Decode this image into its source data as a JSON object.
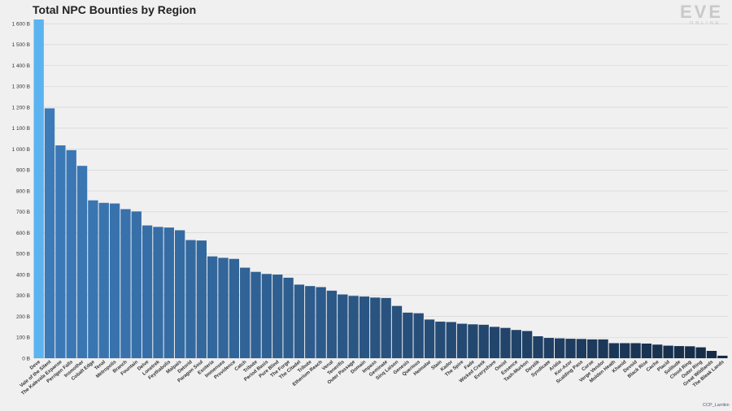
{
  "logo": {
    "main": "EVE",
    "sub": "ONLINE"
  },
  "credit": "CCP_Larrikin",
  "colors": {
    "first_bar": "#5bb3f0",
    "bar_start": "#3c7ab8",
    "bar_end": "#152a45",
    "background": "#f0f0f0"
  },
  "chart_data": {
    "type": "bar",
    "title": "Total NPC Bounties by Region",
    "xlabel": "",
    "ylabel": "",
    "ylim": [
      0,
      1620
    ],
    "yticks": [
      0,
      100,
      200,
      300,
      400,
      500,
      600,
      700,
      800,
      900,
      1000,
      1100,
      1200,
      1300,
      1400,
      1500,
      1600
    ],
    "ytick_labels": [
      "0 B",
      "100 B",
      "200 B",
      "300 B",
      "400 B",
      "500 B",
      "600 B",
      "700 B",
      "800 B",
      "900 B",
      "1 000 B",
      "1 100 B",
      "1 200 B",
      "1 300 B",
      "1 400 B",
      "1 500 B",
      "1 600 B"
    ],
    "grid": true,
    "categories": [
      "Deve",
      "Vale of the Silent",
      "The Kalevala Expanse",
      "Perrigen Falls",
      "Insmother",
      "Cobalt Edge",
      "Tenal",
      "Metropolis",
      "Branch",
      "Fountain",
      "Delve",
      "Lonetrek",
      "Feythabolis",
      "Malpais",
      "Detorid",
      "Paragon Soul",
      "Esoteria",
      "Immensea",
      "Providence",
      "Catch",
      "Tribute",
      "Period Basis",
      "Pure Blind",
      "The Forge",
      "The Citadel",
      "Tribute",
      "Etherium Reach",
      "Venal",
      "Tenerifis",
      "Outer Passage",
      "Domain",
      "Impass",
      "Geminate",
      "Sinq Laison",
      "Genesis",
      "Querious",
      "Heimatar",
      "Stain",
      "Kador",
      "The Spire",
      "Fade",
      "Wicked Creek",
      "Everyshore",
      "Omist",
      "Essence",
      "Tash-Murkon",
      "Derelik",
      "Syndicate",
      "Aridia",
      "Kor-Azor",
      "Scalding Pass",
      "Curse",
      "Verge Vendor",
      "Molden Heath",
      "Khanid",
      "Devoid",
      "Black Rise",
      "Cache",
      "Placid",
      "Solitude",
      "Cloud Ring",
      "Outer Ring",
      "Great Wildlands",
      "The Bleak Lands"
    ],
    "values": [
      1620,
      1195,
      1018,
      995,
      920,
      755,
      743,
      740,
      713,
      702,
      635,
      628,
      625,
      612,
      565,
      563,
      487,
      480,
      475,
      433,
      413,
      403,
      400,
      385,
      352,
      345,
      340,
      323,
      305,
      298,
      295,
      290,
      288,
      250,
      218,
      215,
      185,
      175,
      173,
      165,
      162,
      160,
      150,
      145,
      135,
      130,
      105,
      97,
      95,
      93,
      92,
      90,
      90,
      72,
      72,
      72,
      70,
      65,
      60,
      58,
      57,
      52,
      35,
      12
    ]
  }
}
